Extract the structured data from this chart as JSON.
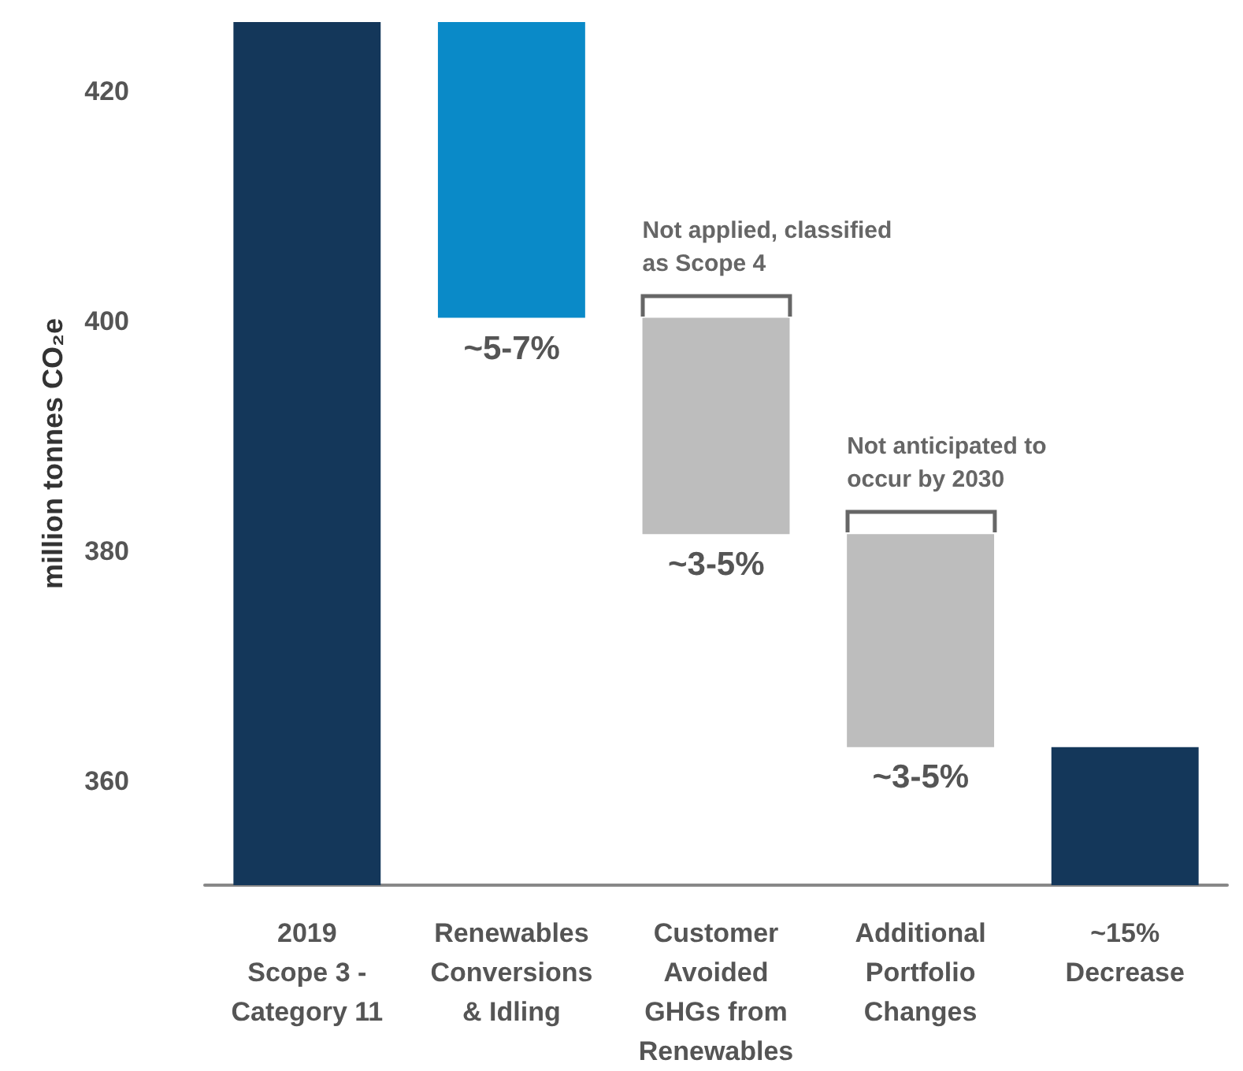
{
  "chart_data": {
    "type": "bar",
    "ylabel": "million tonnes CO₂e",
    "categories": [
      "2019\nScope 3 -\nCategory 11",
      "Renewables\nConversions\n& Idling",
      "Customer\nAvoided\nGHGs from\nRenewables",
      "Additional\nPortfolio\nChanges",
      "~15%\nDecrease"
    ],
    "values": [
      75,
      25.7,
      18.8,
      18.5,
      12
    ],
    "base": [
      351,
      400.3,
      381.5,
      363,
      351
    ],
    "colors": [
      "#14375a",
      "#0a8ac8",
      "#bdbdbd",
      "#bdbdbd",
      "#14375a"
    ],
    "annotations": [
      {
        "text": "~5-7%",
        "x": "Renewables\nConversions\n& Idling",
        "y": 400.3
      },
      {
        "text": "~3-5%",
        "x": "Customer\nAvoided\nGHGs from\nRenewables",
        "y": 381.5
      },
      {
        "text": "~3-5%",
        "x": "Additional\nPortfolio\nChanges",
        "y": 363
      },
      {
        "text": "Not applied, classified\nas Scope 4",
        "x": "Customer\nAvoided\nGHGs from\nRenewables",
        "y": 400.3
      },
      {
        "text": "Not anticipated to\noccur by 2030",
        "x": "Additional\nPortfolio\nChanges",
        "y": 381.5
      }
    ],
    "ylim": [
      351,
      426
    ],
    "yticks": [
      360,
      380,
      400,
      420
    ],
    "grid": false
  }
}
